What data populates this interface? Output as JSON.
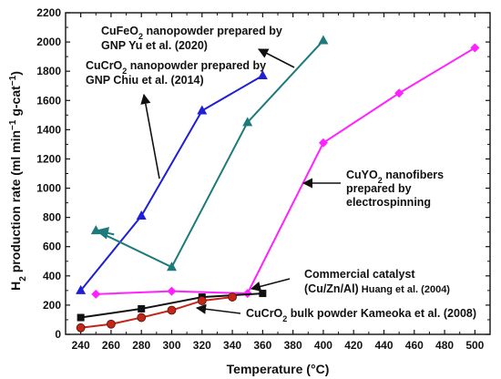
{
  "chart_data": {
    "type": "line",
    "xlabel_parts": [
      "Temperature (",
      "°",
      "C)"
    ],
    "ylabel_parts": {
      "a": "H",
      "sub": "2",
      "b": " production rate (ml min",
      "sup1": "−1",
      "c": " g-cat",
      "sup2": "−1",
      "d": ")"
    },
    "xlim": [
      230,
      510
    ],
    "ylim": [
      0,
      2200
    ],
    "xticks": [
      240,
      260,
      280,
      300,
      320,
      340,
      360,
      380,
      400,
      420,
      440,
      460,
      480,
      500
    ],
    "yticks": [
      0,
      200,
      400,
      600,
      800,
      1000,
      1200,
      1400,
      1600,
      1800,
      2000,
      2200
    ],
    "grid": false,
    "series": [
      {
        "key": "cucro2_nano",
        "color": "#1f1fd6",
        "marker": "triangle",
        "points": [
          [
            240,
            300
          ],
          [
            280,
            810
          ],
          [
            320,
            1530
          ],
          [
            360,
            1770
          ]
        ]
      },
      {
        "key": "cufeo2_nano",
        "color": "#1d7a7a",
        "marker": "triangle",
        "points": [
          [
            250,
            710
          ],
          [
            300,
            460
          ],
          [
            350,
            1450
          ],
          [
            400,
            2010
          ]
        ]
      },
      {
        "key": "cuyo2",
        "color": "#ff22ff",
        "marker": "diamond",
        "points": [
          [
            250,
            275
          ],
          [
            300,
            295
          ],
          [
            350,
            280
          ],
          [
            400,
            1310
          ],
          [
            450,
            1650
          ],
          [
            500,
            1960
          ]
        ]
      },
      {
        "key": "commercial",
        "color": "#111111",
        "marker": "square",
        "points": [
          [
            240,
            115
          ],
          [
            280,
            175
          ],
          [
            320,
            255
          ],
          [
            360,
            280
          ]
        ]
      },
      {
        "key": "cucro2_bulk",
        "color": "#c0271a",
        "marker": "circle",
        "points": [
          [
            240,
            45
          ],
          [
            260,
            70
          ],
          [
            280,
            115
          ],
          [
            300,
            165
          ],
          [
            320,
            230
          ],
          [
            340,
            255
          ]
        ]
      }
    ],
    "annotations": [
      {
        "id": "cufeo2",
        "lines": [
          [
            {
              "t": "CuFeO"
            },
            {
              "t": "2",
              "sub": true
            },
            {
              "t": " nanopowder prepared by"
            }
          ],
          [
            {
              "t": "GNP Yu et al. (2020)"
            }
          ]
        ]
      },
      {
        "id": "cucro2",
        "lines": [
          [
            {
              "t": "CuCrO"
            },
            {
              "t": "2",
              "sub": true
            },
            {
              "t": " nanopowder prepared by"
            }
          ],
          [
            {
              "t": "GNP Chiu et al. (2014)"
            }
          ]
        ]
      },
      {
        "id": "cuyo2",
        "lines": [
          [
            {
              "t": "CuYO"
            },
            {
              "t": "2",
              "sub": true
            },
            {
              "t": " nanofibers"
            }
          ],
          [
            {
              "t": "prepared by"
            }
          ],
          [
            {
              "t": "electrospinning"
            }
          ]
        ]
      },
      {
        "id": "commercial",
        "lines": [
          [
            {
              "t": "Commercial catalyst"
            }
          ],
          [
            {
              "t": "(Cu/Zn/Al)"
            },
            {
              "t": " Huang et al. (2004)",
              "small": true
            }
          ]
        ]
      },
      {
        "id": "bulk",
        "lines": [
          [
            {
              "t": "CuCrO"
            },
            {
              "t": "2",
              "sub": true
            },
            {
              "t": " bulk powder Kameoka et al. (2008)"
            }
          ]
        ]
      }
    ]
  }
}
